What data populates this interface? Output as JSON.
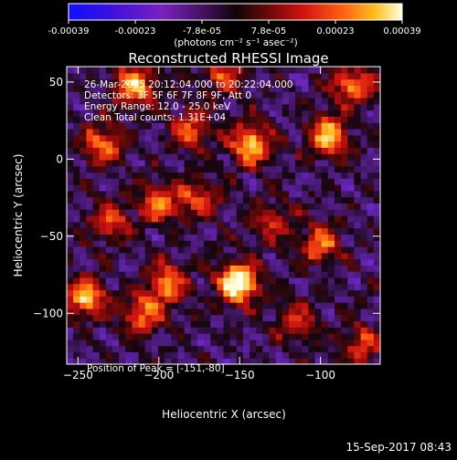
{
  "colorbar": {
    "tick_labels": [
      "-0.00039",
      "-0.00023",
      "-7.8e-05",
      "7.8e-05",
      "0.00023",
      "0.00039"
    ],
    "units": "(photons cm⁻² s⁻¹ asec⁻²)",
    "range": [
      -0.00039,
      0.00039
    ]
  },
  "chart_data": {
    "type": "heatmap",
    "title": "Reconstructed RHESSI Image",
    "xlabel": "Heliocentric X (arcsec)",
    "ylabel": "Heliocentric Y (arcsec)",
    "xlim": [
      -257,
      -63
    ],
    "ylim": [
      -133,
      60
    ],
    "x_ticks": [
      -250,
      -200,
      -150,
      -100
    ],
    "y_ticks": [
      50,
      0,
      -50,
      -100
    ],
    "x_tick_labels": [
      "−250",
      "−200",
      "−150",
      "−100"
    ],
    "y_tick_labels": [
      "50",
      "0",
      "−50",
      "−100"
    ],
    "annotations": [
      "26-Mar-2015 20:12:04.000 to 20:22:04.000",
      "Detectors: 3F 5F 6F 7F 8F 9F, Att 0",
      "Energy Range: 12.0 - 25.0 keV",
      "Clean    Total counts: 1.31E+04"
    ],
    "peak_label": "Position of Peak = [-151,-80]",
    "peak": [
      -151,
      -80
    ],
    "bright_regions": [
      {
        "x": -151,
        "y": -80,
        "intensity": 1.0
      },
      {
        "x": -143,
        "y": 10,
        "intensity": 0.75
      },
      {
        "x": -215,
        "y": 48,
        "intensity": 0.7
      },
      {
        "x": -95,
        "y": 15,
        "intensity": 0.7
      },
      {
        "x": -245,
        "y": -90,
        "intensity": 0.7
      },
      {
        "x": -80,
        "y": 48,
        "intensity": 0.6
      },
      {
        "x": -195,
        "y": -80,
        "intensity": 0.6
      },
      {
        "x": -235,
        "y": 10,
        "intensity": 0.55
      },
      {
        "x": -100,
        "y": -55,
        "intensity": 0.55
      },
      {
        "x": -230,
        "y": -40,
        "intensity": 0.5
      },
      {
        "x": -180,
        "y": 20,
        "intensity": 0.5
      },
      {
        "x": -210,
        "y": -100,
        "intensity": 0.55
      },
      {
        "x": -200,
        "y": -28,
        "intensity": 0.55
      },
      {
        "x": -175,
        "y": -25,
        "intensity": 0.45
      },
      {
        "x": -75,
        "y": -120,
        "intensity": 0.45
      },
      {
        "x": -115,
        "y": -105,
        "intensity": 0.4
      },
      {
        "x": -160,
        "y": 55,
        "intensity": 0.45
      },
      {
        "x": -130,
        "y": -40,
        "intensity": 0.4
      }
    ]
  },
  "footer": {
    "timestamp": "15-Sep-2017 08:43"
  }
}
